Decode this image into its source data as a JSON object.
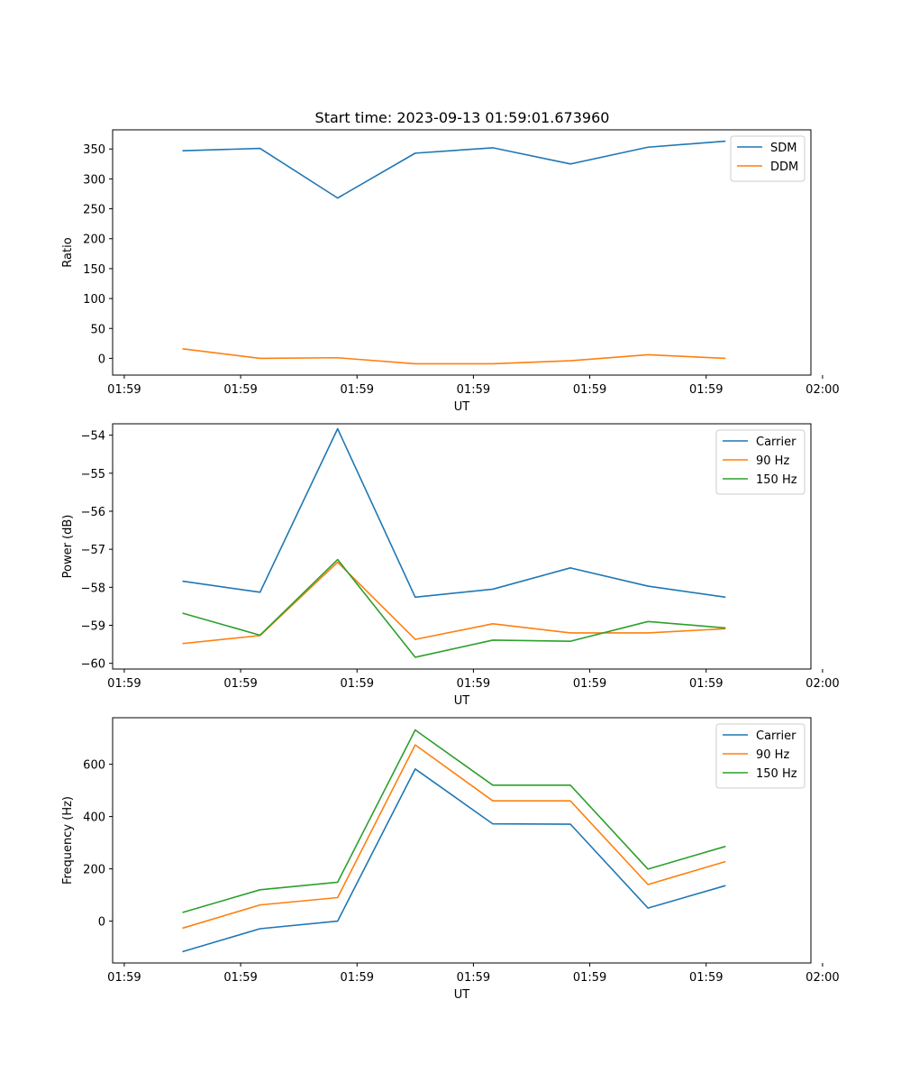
{
  "figure_title": "Start time: 2023-09-13 01:59:01.673960",
  "colors": {
    "blue": "#1f77b4",
    "orange": "#ff7f0e",
    "green": "#2ca02c"
  },
  "chart_data": [
    {
      "type": "line",
      "title": "Start time: 2023-09-13 01:59:01.673960",
      "xlabel": "UT",
      "ylabel": "Ratio",
      "xlim": [
        -0.45,
        8.55
      ],
      "ylim": [
        -28,
        382
      ],
      "x_ticks": [
        {
          "pos": -0.3,
          "label": "01:59"
        },
        {
          "pos": 1.2,
          "label": "01:59"
        },
        {
          "pos": 2.7,
          "label": "01:59"
        },
        {
          "pos": 4.2,
          "label": "01:59"
        },
        {
          "pos": 5.7,
          "label": "01:59"
        },
        {
          "pos": 7.2,
          "label": "01:59"
        },
        {
          "pos": 8.7,
          "label": "02:00"
        }
      ],
      "y_ticks": [
        0,
        50,
        100,
        150,
        200,
        250,
        300,
        350
      ],
      "x": [
        0.45,
        1.45,
        2.45,
        3.45,
        4.45,
        5.45,
        6.45,
        7.45
      ],
      "legend_loc": "upper right",
      "series": [
        {
          "name": "SDM",
          "color": "#1f77b4",
          "values": [
            347,
            351,
            268,
            343,
            352,
            325,
            353,
            363
          ]
        },
        {
          "name": "DDM",
          "color": "#ff7f0e",
          "values": [
            16,
            0,
            1,
            -9,
            -9,
            -4,
            6,
            0
          ]
        }
      ]
    },
    {
      "type": "line",
      "title": "",
      "xlabel": "UT",
      "ylabel": "Power (dB)",
      "xlim": [
        -0.45,
        8.55
      ],
      "ylim": [
        -60.15,
        -53.7
      ],
      "x_ticks": [
        {
          "pos": -0.3,
          "label": "01:59"
        },
        {
          "pos": 1.2,
          "label": "01:59"
        },
        {
          "pos": 2.7,
          "label": "01:59"
        },
        {
          "pos": 4.2,
          "label": "01:59"
        },
        {
          "pos": 5.7,
          "label": "01:59"
        },
        {
          "pos": 7.2,
          "label": "01:59"
        },
        {
          "pos": 8.7,
          "label": "02:00"
        }
      ],
      "y_ticks": [
        -60,
        -59,
        -58,
        -57,
        -56,
        -55,
        -54
      ],
      "y_tick_labels": [
        "−60",
        "−59",
        "−58",
        "−57",
        "−56",
        "−55",
        "−54"
      ],
      "x": [
        0.45,
        1.45,
        2.45,
        3.45,
        4.45,
        5.45,
        6.45,
        7.45
      ],
      "legend_loc": "upper right",
      "series": [
        {
          "name": "Carrier",
          "color": "#1f77b4",
          "values": [
            -57.84,
            -58.13,
            -53.83,
            -58.26,
            -58.05,
            -57.49,
            -57.97,
            -58.26
          ]
        },
        {
          "name": "90 Hz",
          "color": "#ff7f0e",
          "values": [
            -59.48,
            -59.27,
            -57.34,
            -59.37,
            -58.96,
            -59.2,
            -59.2,
            -59.09
          ]
        },
        {
          "name": "150 Hz",
          "color": "#2ca02c",
          "values": [
            -58.68,
            -59.26,
            -57.27,
            -59.84,
            -59.39,
            -59.42,
            -58.9,
            -59.07
          ]
        }
      ]
    },
    {
      "type": "line",
      "title": "",
      "xlabel": "UT",
      "ylabel": "Frequency (Hz)",
      "xlim": [
        -0.45,
        8.55
      ],
      "ylim": [
        -160,
        778
      ],
      "x_ticks": [
        {
          "pos": -0.3,
          "label": "01:59"
        },
        {
          "pos": 1.2,
          "label": "01:59"
        },
        {
          "pos": 2.7,
          "label": "01:59"
        },
        {
          "pos": 4.2,
          "label": "01:59"
        },
        {
          "pos": 5.7,
          "label": "01:59"
        },
        {
          "pos": 7.2,
          "label": "01:59"
        },
        {
          "pos": 8.7,
          "label": "02:00"
        }
      ],
      "y_ticks": [
        0,
        200,
        400,
        600
      ],
      "x": [
        0.45,
        1.45,
        2.45,
        3.45,
        4.45,
        5.45,
        6.45,
        7.45
      ],
      "legend_loc": "upper right",
      "series": [
        {
          "name": "Carrier",
          "color": "#1f77b4",
          "values": [
            -117,
            -29,
            0,
            582,
            372,
            371,
            50,
            136
          ]
        },
        {
          "name": "90 Hz",
          "color": "#ff7f0e",
          "values": [
            -27,
            62,
            90,
            674,
            460,
            460,
            140,
            228
          ]
        },
        {
          "name": "150 Hz",
          "color": "#2ca02c",
          "values": [
            33,
            120,
            149,
            731,
            520,
            520,
            199,
            286
          ]
        }
      ]
    }
  ]
}
